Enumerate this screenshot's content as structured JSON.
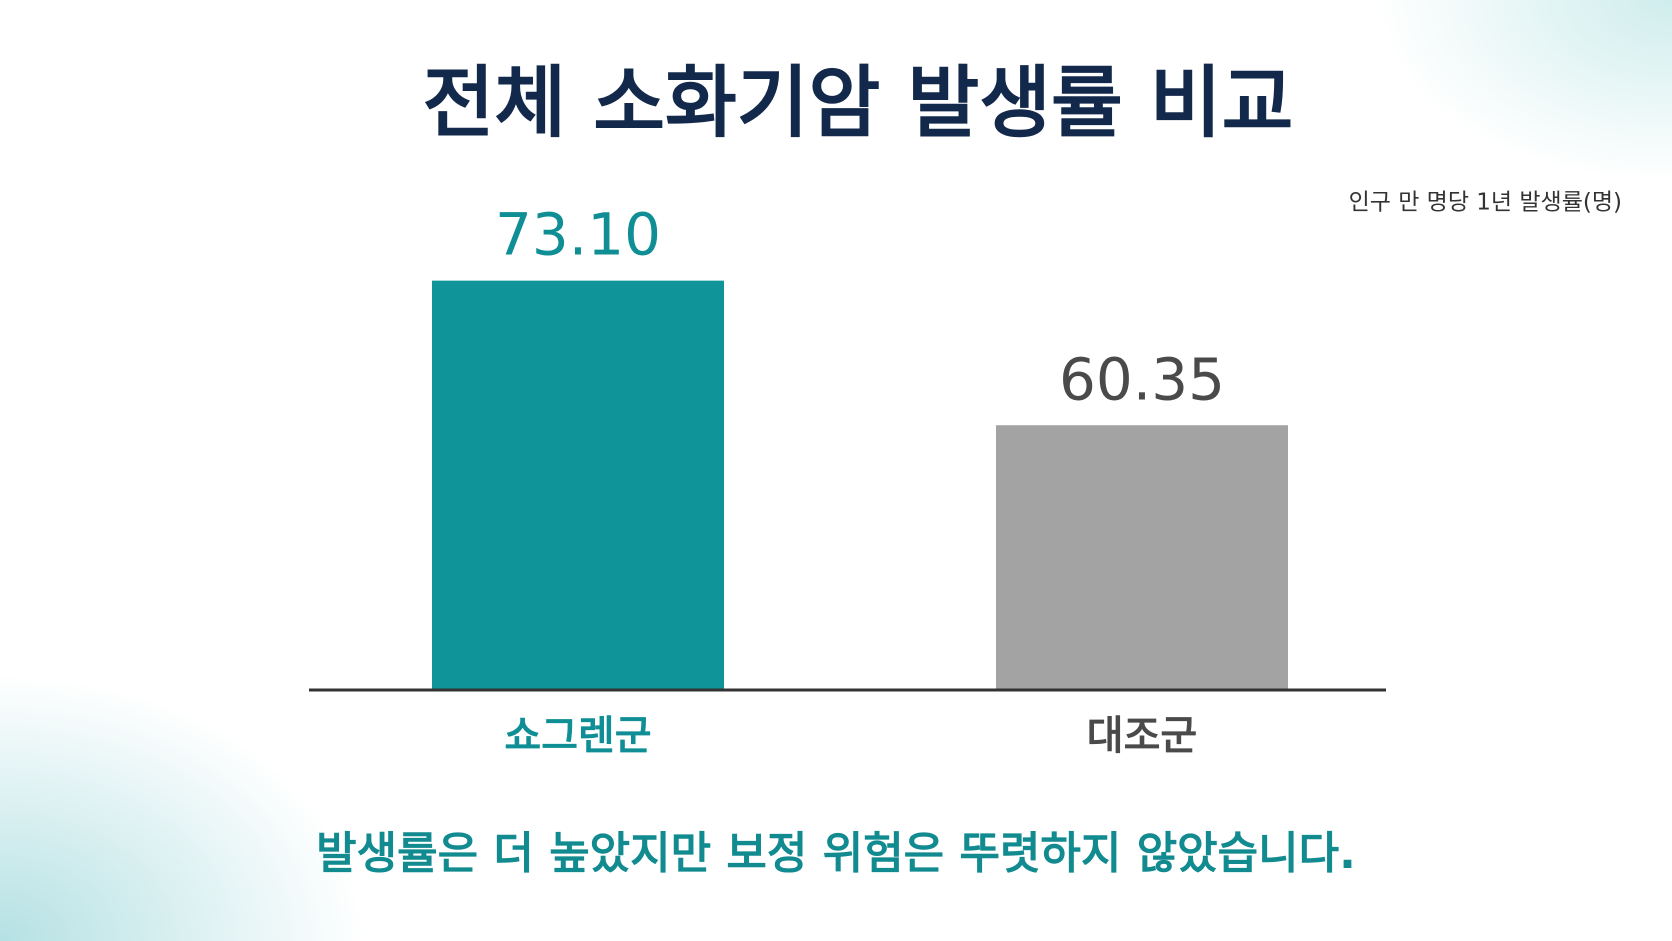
{
  "chart_data": {
    "type": "bar",
    "title": "전체 소화기암 발생률 비교",
    "subtitle": "인구 만 명당 1년 발생률(명)",
    "categories": [
      "쇼그렌군",
      "대조군"
    ],
    "values": [
      73.1,
      60.35
    ],
    "value_labels": [
      "73.10",
      "60.35"
    ],
    "colors": [
      "#0e9499",
      "#a3a3a3"
    ],
    "ylim": [
      37,
      90
    ],
    "annotation": "발생률은 더 높았지만 보정 위험은 뚜렷하지 않았습니다."
  }
}
